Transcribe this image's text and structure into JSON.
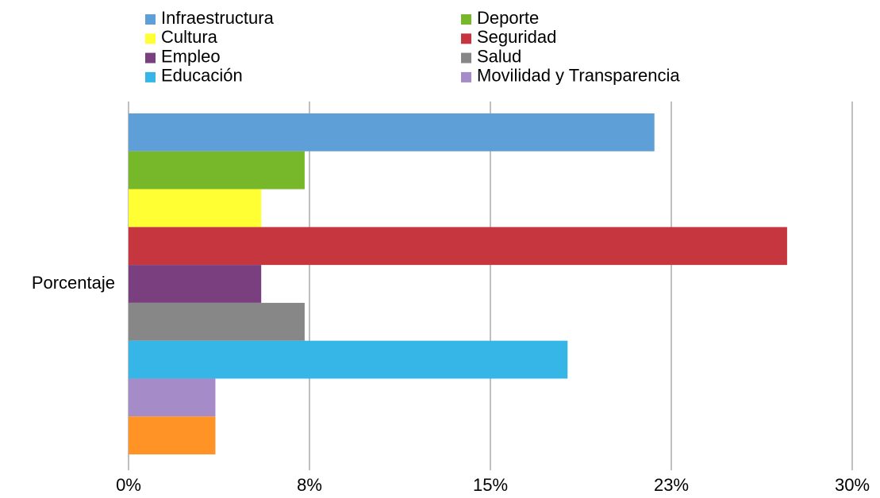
{
  "chart_data": {
    "type": "bar",
    "orientation": "horizontal",
    "categories": [
      "Porcentaje"
    ],
    "series": [
      {
        "name": "Infraestructura",
        "color": "#5f9fd8",
        "values": [
          21.8
        ]
      },
      {
        "name": "Deporte",
        "color": "#76b82a",
        "values": [
          7.3
        ]
      },
      {
        "name": "Cultura",
        "color": "#ffff33",
        "values": [
          5.5
        ]
      },
      {
        "name": "Seguridad",
        "color": "#c6363e",
        "values": [
          27.3
        ]
      },
      {
        "name": "Empleo",
        "color": "#7a3f7f",
        "values": [
          5.5
        ]
      },
      {
        "name": "Salud",
        "color": "#878787",
        "values": [
          7.3
        ]
      },
      {
        "name": "Educación",
        "color": "#36b6e6",
        "values": [
          18.2
        ]
      },
      {
        "name": "Movilidad y Transparencia",
        "color": "#a58bc7",
        "values": [
          3.6
        ]
      },
      {
        "name": null,
        "color": "#ff9326",
        "values": [
          3.6
        ]
      }
    ],
    "xlim": [
      0,
      30
    ],
    "xticks": [
      {
        "value": 0,
        "label": "0%"
      },
      {
        "value": 7.5,
        "label": "8%"
      },
      {
        "value": 15,
        "label": "15%"
      },
      {
        "value": 22.5,
        "label": "23%"
      },
      {
        "value": 30,
        "label": "30%"
      }
    ],
    "grid": true
  }
}
